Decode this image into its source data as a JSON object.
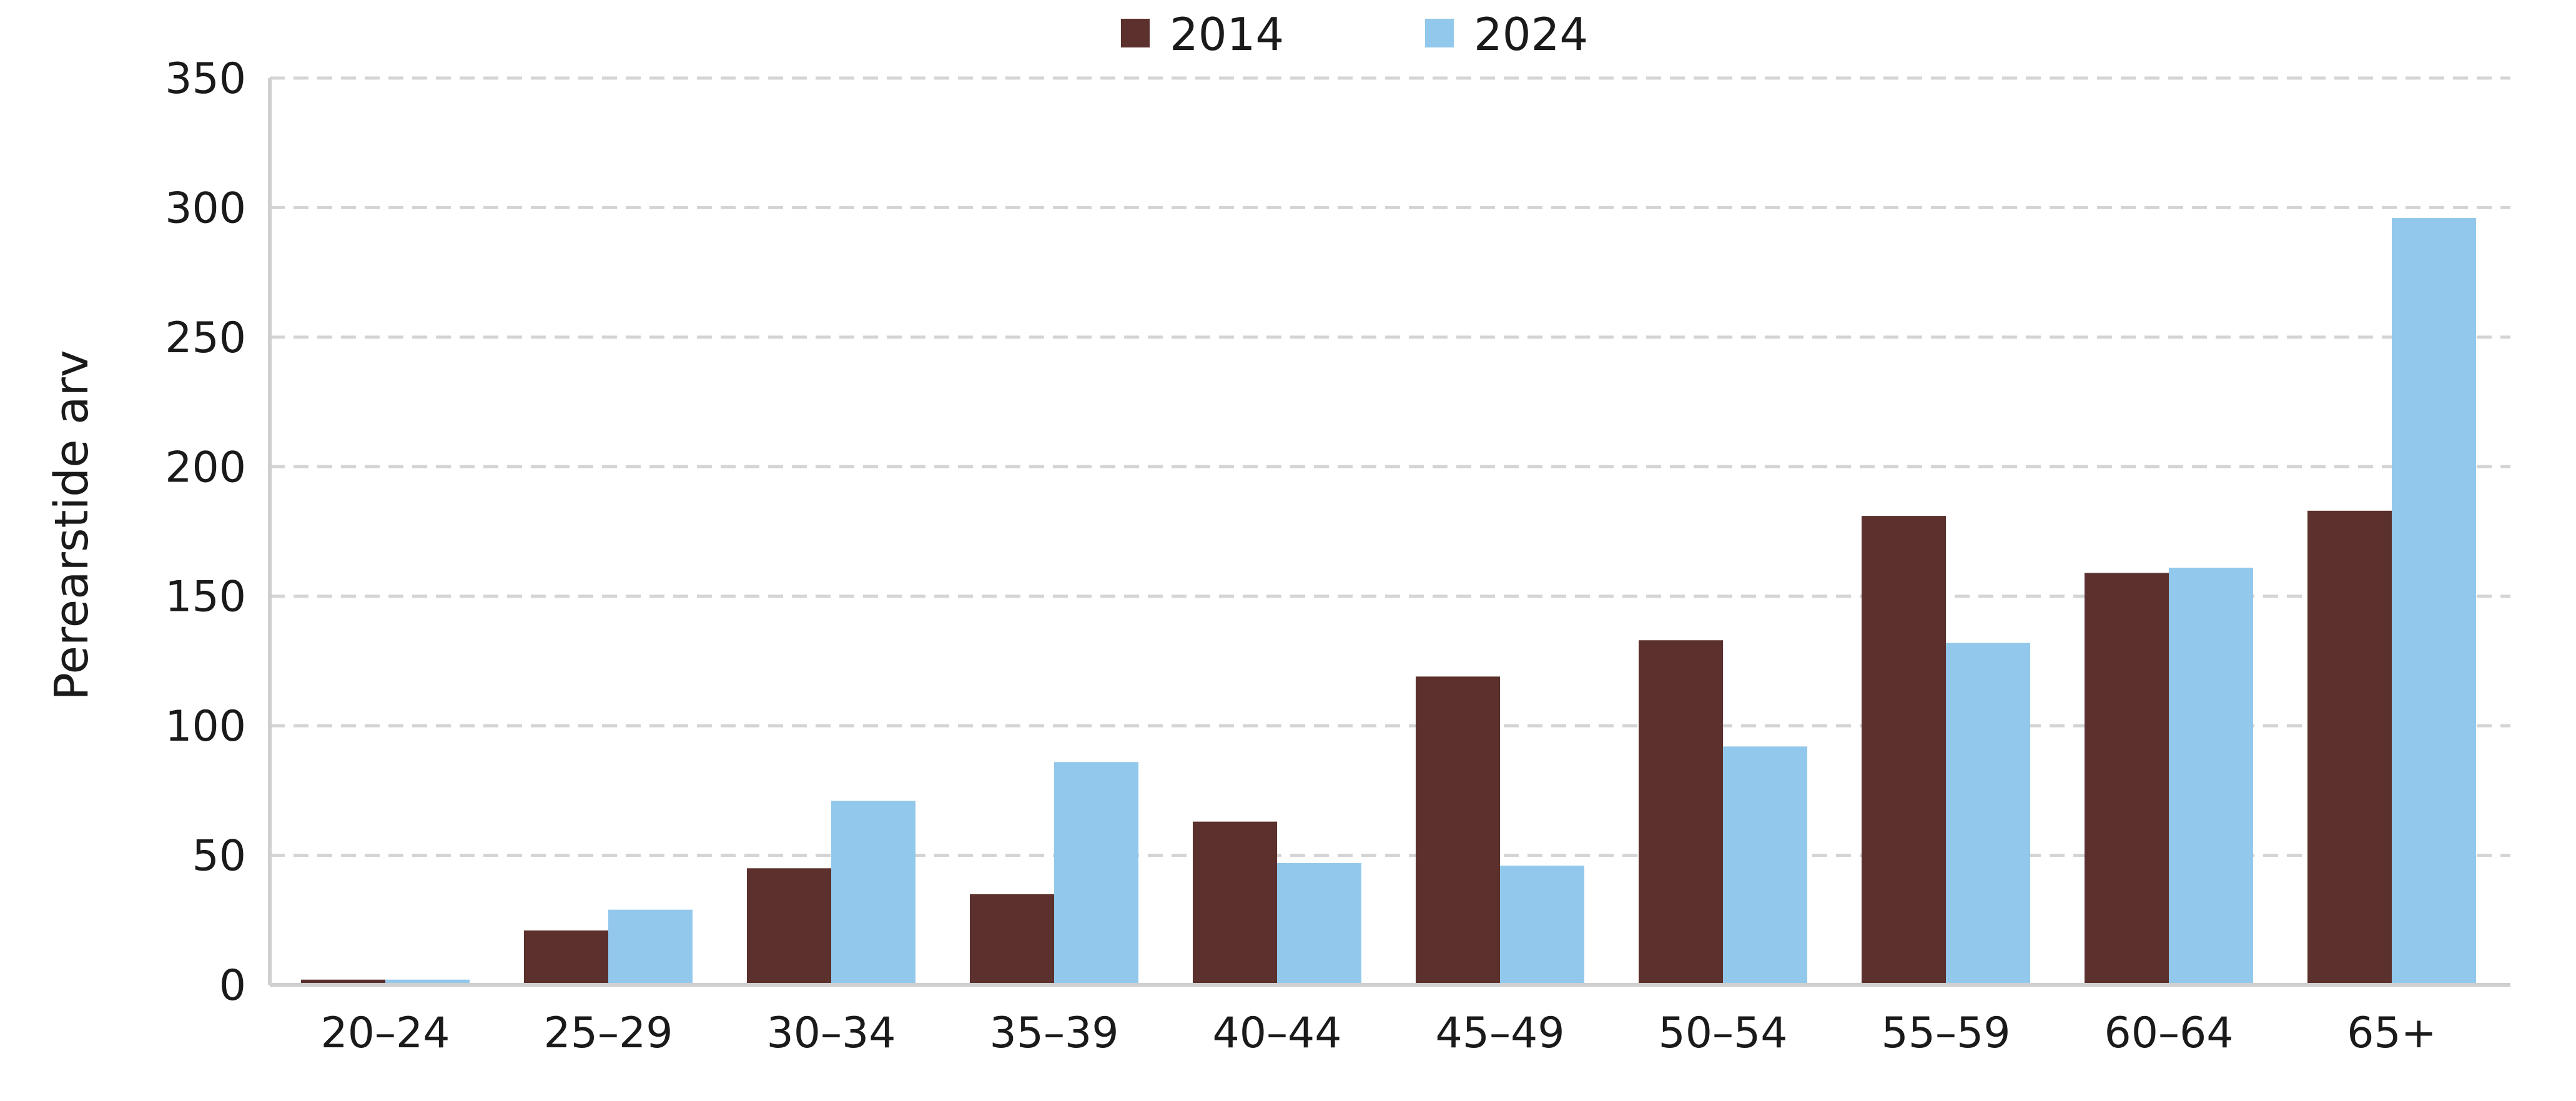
{
  "chart_data": {
    "type": "bar",
    "title": "",
    "xlabel": "",
    "ylabel": "Perearstide arv",
    "ylim": [
      0,
      350
    ],
    "yticks": [
      0,
      50,
      100,
      150,
      200,
      250,
      300,
      350
    ],
    "grid": true,
    "legend_position": "top-center",
    "categories": [
      "20–24",
      "25–29",
      "30–34",
      "35–39",
      "40–44",
      "45–49",
      "50–54",
      "55–59",
      "60–64",
      "65+"
    ],
    "series": [
      {
        "name": "2014",
        "color": "#5c302c",
        "values": [
          2,
          21,
          45,
          35,
          63,
          119,
          133,
          181,
          159,
          183
        ]
      },
      {
        "name": "2024",
        "color": "#92c8eb",
        "values": [
          2,
          29,
          71,
          86,
          47,
          46,
          92,
          132,
          161,
          296
        ]
      }
    ]
  }
}
